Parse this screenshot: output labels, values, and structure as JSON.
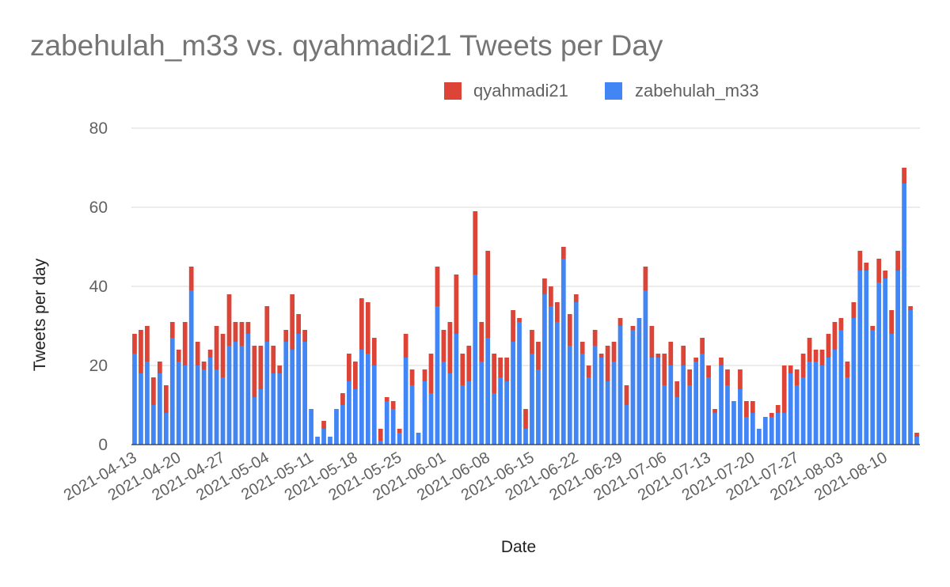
{
  "chart_data": {
    "type": "bar",
    "stacked": true,
    "title": "zabehulah_m33 vs. qyahmadi21 Tweets per Day",
    "xlabel": "Date",
    "ylabel": "Tweets per day",
    "ylim": [
      0,
      80
    ],
    "yticks": [
      "0",
      "20",
      "40",
      "60",
      "80"
    ],
    "grid": true,
    "legend_position": "top",
    "legend": [
      {
        "name": "qyahmadi21",
        "color": "#db4437"
      },
      {
        "name": "zabehulah_m33",
        "color": "#4285f4"
      }
    ],
    "x_tick_labels": [
      "2021-04-13",
      "2021-04-20",
      "2021-04-27",
      "2021-05-04",
      "2021-05-11",
      "2021-05-18",
      "2021-05-25",
      "2021-06-01",
      "2021-06-08",
      "2021-06-15",
      "2021-06-22",
      "2021-06-29",
      "2021-07-06",
      "2021-07-13",
      "2021-07-20",
      "2021-07-27",
      "2021-08-03",
      "2021-08-10"
    ],
    "start_date": "2021-04-13",
    "series": [
      {
        "name": "zabehulah_m33",
        "color": "#4285f4",
        "values": [
          23,
          18,
          21,
          10,
          18,
          8,
          27,
          21,
          20,
          39,
          20,
          19,
          22,
          19,
          17,
          25,
          26,
          25,
          28,
          12,
          14,
          26,
          18,
          18,
          26,
          24,
          28,
          26,
          9,
          2,
          4,
          2,
          9,
          10,
          16,
          14,
          24,
          23,
          20,
          1,
          11,
          9,
          3,
          22,
          15,
          3,
          16,
          13,
          35,
          21,
          18,
          28,
          15,
          16,
          43,
          21,
          27,
          13,
          17,
          16,
          26,
          31,
          4,
          23,
          19,
          38,
          35,
          31,
          47,
          25,
          36,
          23,
          17,
          25,
          22,
          16,
          21,
          30,
          10,
          29,
          32,
          39,
          22,
          22,
          15,
          20,
          12,
          20,
          15,
          21,
          23,
          17,
          8,
          20,
          15,
          11,
          14,
          7,
          8,
          4,
          7,
          7,
          8,
          8,
          18,
          15,
          17,
          21,
          21,
          20,
          22,
          24,
          29,
          17,
          32,
          44,
          44,
          29,
          41,
          42,
          28,
          44,
          66,
          34,
          2
        ]
      },
      {
        "name": "qyahmadi21",
        "color": "#db4437",
        "values": [
          5,
          11,
          9,
          7,
          3,
          7,
          4,
          3,
          11,
          6,
          6,
          2,
          2,
          11,
          11,
          13,
          5,
          6,
          3,
          13,
          11,
          9,
          7,
          2,
          3,
          14,
          5,
          3,
          0,
          0,
          2,
          0,
          0,
          3,
          7,
          7,
          13,
          13,
          7,
          3,
          1,
          2,
          1,
          6,
          4,
          0,
          3,
          10,
          10,
          8,
          13,
          15,
          8,
          9,
          16,
          10,
          22,
          10,
          5,
          6,
          8,
          1,
          5,
          6,
          7,
          4,
          5,
          5,
          3,
          8,
          2,
          3,
          3,
          4,
          1,
          9,
          5,
          2,
          5,
          1,
          0,
          6,
          8,
          1,
          8,
          6,
          4,
          5,
          4,
          1,
          4,
          3,
          1,
          2,
          4,
          0,
          5,
          4,
          3,
          0,
          0,
          1,
          2,
          12,
          2,
          4,
          6,
          6,
          3,
          4,
          6,
          7,
          3,
          4,
          4,
          5,
          2,
          1,
          6,
          2,
          6,
          5,
          4,
          1,
          1
        ]
      }
    ]
  }
}
